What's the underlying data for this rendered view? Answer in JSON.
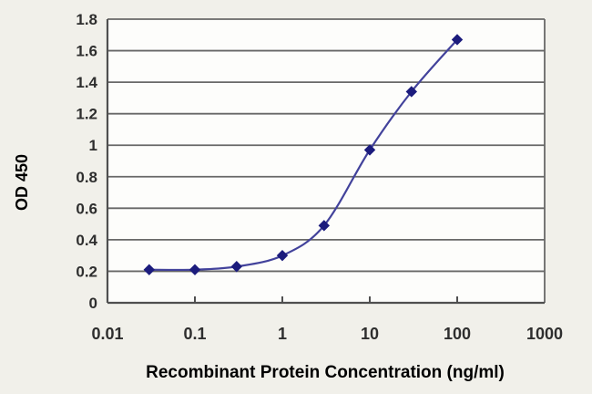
{
  "chart_data": {
    "type": "line",
    "title": "",
    "xlabel": "Recombinant Protein Concentration (ng/ml)",
    "ylabel": "OD 450",
    "x_scale": "log",
    "x": [
      0.03,
      0.1,
      0.3,
      1,
      3,
      10,
      30,
      100
    ],
    "y": [
      0.21,
      0.21,
      0.23,
      0.3,
      0.49,
      0.97,
      1.34,
      1.67
    ],
    "xlim": [
      0.01,
      1000
    ],
    "ylim": [
      0,
      1.8
    ],
    "xticks": [
      0.01,
      0.1,
      1,
      10,
      100,
      1000
    ],
    "xtick_labels": [
      "0.01",
      "0.1",
      "1",
      "10",
      "100",
      "1000"
    ],
    "yticks": [
      0,
      0.2,
      0.4,
      0.6,
      0.8,
      1,
      1.2,
      1.4,
      1.6,
      1.8
    ],
    "ytick_labels": [
      "0",
      "0.2",
      "0.4",
      "0.6",
      "0.8",
      "1",
      "1.2",
      "1.4",
      "1.6",
      "1.8"
    ],
    "grid": "horizontal",
    "legend": "none",
    "marker": "diamond",
    "colors": {
      "line": "#42429b",
      "marker": "#1c1c7d",
      "grid": "#686868",
      "axis": "#4f4f4f",
      "text": "#2e2e2e",
      "background": "#f1f0ea",
      "plot_background": "#fdfdfb"
    }
  }
}
